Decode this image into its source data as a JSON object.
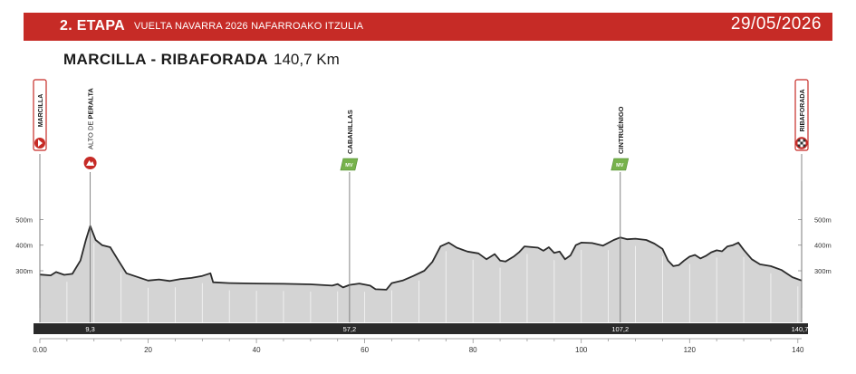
{
  "header": {
    "stage": "2. ETAPA",
    "event": "VUELTA NAVARRA 2026 NAFARROAKO ITZULIA",
    "date": "29/05/2026"
  },
  "route": {
    "title": "MARCILLA - RIBAFORADA",
    "distance": "140,7 Km"
  },
  "colors": {
    "banner": "#c62b26",
    "profile_fill": "#d4d4d4",
    "profile_line": "#2b2b2b",
    "bar": "#2a2a2a",
    "sprint": "#77b24c"
  },
  "chart_data": {
    "type": "area",
    "xlim": [
      0,
      140.7
    ],
    "ylim": [
      100,
      800
    ],
    "x_ticks": [
      "0.00",
      "20",
      "40",
      "60",
      "80",
      "100",
      "120",
      "140"
    ],
    "x_tick_values": [
      0,
      20,
      40,
      60,
      80,
      100,
      120,
      140
    ],
    "y_ticks": [
      "500m",
      "400m",
      "300m"
    ],
    "y_tick_values": [
      500,
      400,
      300
    ],
    "km_markers": [
      {
        "km": 9.3,
        "label": "9,3"
      },
      {
        "km": 57.2,
        "label": "57,2"
      },
      {
        "km": 107.2,
        "label": "107,2"
      },
      {
        "km": 140.7,
        "label": "140,7"
      }
    ],
    "waypoints": [
      {
        "km": 0,
        "name": "MARCILLA",
        "icon": "start-flag-icon"
      },
      {
        "km": 9.3,
        "name_prefix": "ALTO DE",
        "name": "PERALTA",
        "icon": "mountain-climb-icon"
      },
      {
        "km": 57.2,
        "name": "CABANILLAS",
        "icon": "intermediate-sprint-icon",
        "badge": "MV"
      },
      {
        "km": 107.2,
        "name": "CINTRUÉNIGO",
        "icon": "intermediate-sprint-icon",
        "badge": "MV"
      },
      {
        "km": 140.7,
        "name": "RIBAFORADA",
        "icon": "finish-flag-icon"
      }
    ],
    "profile": [
      [
        0,
        285
      ],
      [
        2,
        282
      ],
      [
        3,
        295
      ],
      [
        4.5,
        284
      ],
      [
        6,
        288
      ],
      [
        7.5,
        340
      ],
      [
        8.5,
        420
      ],
      [
        9.3,
        475
      ],
      [
        10.3,
        420
      ],
      [
        11.5,
        400
      ],
      [
        13,
        392
      ],
      [
        14.5,
        340
      ],
      [
        16,
        290
      ],
      [
        18,
        276
      ],
      [
        20,
        262
      ],
      [
        22,
        266
      ],
      [
        24,
        260
      ],
      [
        26,
        268
      ],
      [
        28,
        272
      ],
      [
        30,
        280
      ],
      [
        31.5,
        290
      ],
      [
        32,
        255
      ],
      [
        35,
        252
      ],
      [
        40,
        250
      ],
      [
        45,
        249
      ],
      [
        50,
        247
      ],
      [
        54,
        242
      ],
      [
        55,
        248
      ],
      [
        56,
        235
      ],
      [
        57.2,
        245
      ],
      [
        59,
        250
      ],
      [
        61,
        242
      ],
      [
        62,
        228
      ],
      [
        64,
        226
      ],
      [
        65,
        252
      ],
      [
        67,
        262
      ],
      [
        69,
        280
      ],
      [
        71,
        300
      ],
      [
        72.5,
        335
      ],
      [
        74,
        395
      ],
      [
        75.5,
        410
      ],
      [
        77,
        390
      ],
      [
        79,
        375
      ],
      [
        81,
        368
      ],
      [
        82.5,
        345
      ],
      [
        84,
        365
      ],
      [
        85,
        340
      ],
      [
        86,
        336
      ],
      [
        87.5,
        355
      ],
      [
        88.5,
        372
      ],
      [
        89.5,
        395
      ],
      [
        92,
        390
      ],
      [
        93,
        378
      ],
      [
        94,
        392
      ],
      [
        95,
        370
      ],
      [
        96,
        375
      ],
      [
        97,
        345
      ],
      [
        98,
        360
      ],
      [
        99,
        400
      ],
      [
        100,
        410
      ],
      [
        102,
        408
      ],
      [
        104,
        398
      ],
      [
        106,
        420
      ],
      [
        107.2,
        430
      ],
      [
        108.5,
        423
      ],
      [
        110,
        425
      ],
      [
        112,
        420
      ],
      [
        113.5,
        406
      ],
      [
        115,
        385
      ],
      [
        116,
        340
      ],
      [
        117,
        318
      ],
      [
        118,
        322
      ],
      [
        119,
        340
      ],
      [
        120,
        355
      ],
      [
        121,
        362
      ],
      [
        122,
        348
      ],
      [
        123,
        358
      ],
      [
        124,
        372
      ],
      [
        125,
        380
      ],
      [
        126,
        376
      ],
      [
        127,
        395
      ],
      [
        128,
        400
      ],
      [
        129,
        410
      ],
      [
        130,
        382
      ],
      [
        131.5,
        345
      ],
      [
        133,
        325
      ],
      [
        135,
        318
      ],
      [
        137,
        303
      ],
      [
        139,
        275
      ],
      [
        140.7,
        262
      ]
    ]
  }
}
